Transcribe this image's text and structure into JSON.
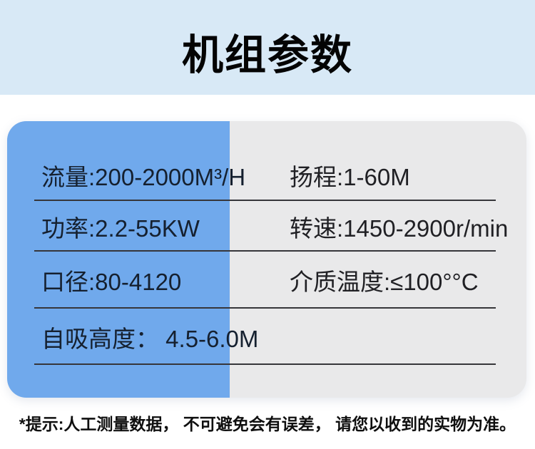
{
  "header": {
    "title": "机组参数"
  },
  "spec_table": {
    "rows": [
      {
        "left": "流量:200-2000M³/H",
        "right": "扬程:1-60M"
      },
      {
        "left": "功率:2.2-55KW",
        "right": "转速:1450-2900r/min"
      },
      {
        "left": "口径:80-4120",
        "right": "介质温度:≤100°°C"
      },
      {
        "left": "自吸高度： 4.5-6.0M",
        "right": ""
      }
    ]
  },
  "footnote": {
    "text": "*提示:人工测量数据， 不可避免会有误差， 请您以收到的实物为准。"
  },
  "colors": {
    "band_background": "#d8e9f6",
    "card_blue": "#70a9ec",
    "card_gray": "#e9e9ea",
    "divider": "#36363a",
    "title_text": "#040404",
    "row_text_left": "#15202f",
    "row_text_right": "#202024",
    "footnote_text": "#0f0f0f",
    "page_background": "#ffffff"
  }
}
